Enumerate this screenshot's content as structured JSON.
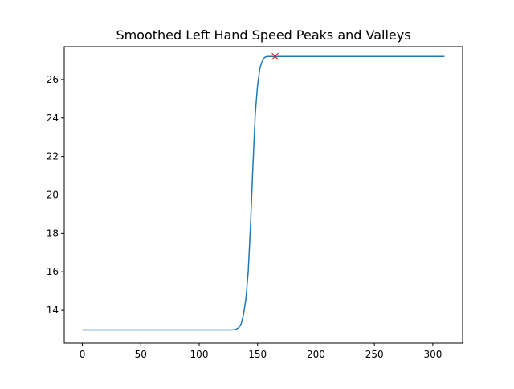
{
  "chart_data": {
    "type": "line",
    "title": "Smoothed Left Hand Speed Peaks and Valleys",
    "xlabel": "",
    "ylabel": "",
    "xlim": [
      -15.5,
      325.5
    ],
    "ylim": [
      12.29,
      27.71
    ],
    "xticks": [
      0,
      50,
      100,
      150,
      200,
      250,
      300
    ],
    "yticks": [
      14,
      16,
      18,
      20,
      22,
      24,
      26
    ],
    "grid": false,
    "series": [
      {
        "color": "#1f77b4",
        "points": [
          [
            0,
            12.98
          ],
          [
            50,
            12.98
          ],
          [
            100,
            12.98
          ],
          [
            120,
            12.98
          ],
          [
            128,
            12.98
          ],
          [
            131,
            13.0
          ],
          [
            134,
            13.1
          ],
          [
            136,
            13.3
          ],
          [
            138,
            13.8
          ],
          [
            140,
            14.6
          ],
          [
            142,
            16.0
          ],
          [
            144,
            18.5
          ],
          [
            146,
            21.5
          ],
          [
            148,
            24.2
          ],
          [
            150,
            25.7
          ],
          [
            152,
            26.6
          ],
          [
            154,
            26.95
          ],
          [
            156,
            27.15
          ],
          [
            158,
            27.2
          ],
          [
            160,
            27.2
          ],
          [
            165,
            27.2
          ],
          [
            200,
            27.2
          ],
          [
            250,
            27.2
          ],
          [
            310,
            27.2
          ]
        ]
      }
    ],
    "markers": [
      {
        "kind": "peak",
        "symbol": "x",
        "color": "#d62728",
        "x": 165,
        "y": 27.2
      }
    ]
  }
}
